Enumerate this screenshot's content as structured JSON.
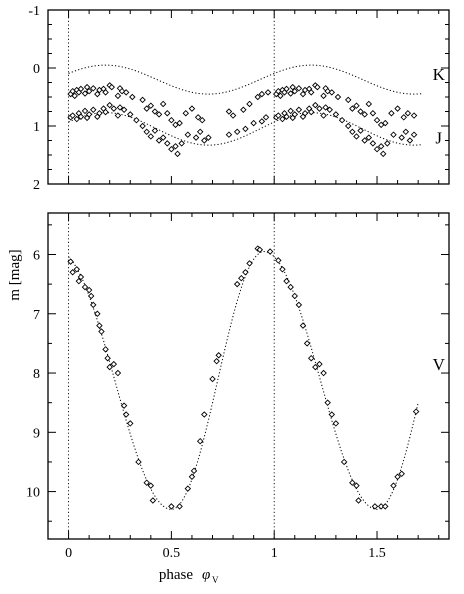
{
  "chart_data": {
    "ylabel": "m  [mag]",
    "xlabel": "phase",
    "xlabel_symbol": "φ",
    "xlabel_subscript": "V",
    "xlim": [
      -0.1,
      1.85
    ],
    "xticks": [
      "0",
      "0.5",
      "1",
      "1.5"
    ],
    "reference_phases": [
      0,
      1
    ],
    "panels": [
      {
        "name": "top",
        "type": "scatter",
        "ylim": [
          -1,
          2
        ],
        "inverted": true,
        "yticks": [
          {
            "value": -1,
            "label": "-1"
          },
          {
            "value": 0,
            "label": "0"
          },
          {
            "value": 1,
            "label": "1"
          },
          {
            "value": 2,
            "label": "2"
          }
        ],
        "series": [
          {
            "name": "K",
            "label_at": [
              1.8,
              0.1
            ],
            "points": [
              [
                0.01,
                0.45
              ],
              [
                0.02,
                0.4
              ],
              [
                0.03,
                0.48
              ],
              [
                0.04,
                0.38
              ],
              [
                0.05,
                0.42
              ],
              [
                0.06,
                0.36
              ],
              [
                0.08,
                0.44
              ],
              [
                0.09,
                0.33
              ],
              [
                0.1,
                0.4
              ],
              [
                0.12,
                0.35
              ],
              [
                0.14,
                0.45
              ],
              [
                0.15,
                0.38
              ],
              [
                0.17,
                0.36
              ],
              [
                0.18,
                0.42
              ],
              [
                0.2,
                0.3
              ],
              [
                0.21,
                0.33
              ],
              [
                0.24,
                0.48
              ],
              [
                0.25,
                0.35
              ],
              [
                0.26,
                0.4
              ],
              [
                0.28,
                0.42
              ],
              [
                0.31,
                0.5
              ],
              [
                0.36,
                0.55
              ],
              [
                0.38,
                0.7
              ],
              [
                0.4,
                0.65
              ],
              [
                0.42,
                0.75
              ],
              [
                0.44,
                0.8
              ],
              [
                0.46,
                0.62
              ],
              [
                0.48,
                0.78
              ],
              [
                0.5,
                0.9
              ],
              [
                0.52,
                0.98
              ],
              [
                0.54,
                0.95
              ],
              [
                0.57,
                0.78
              ],
              [
                0.6,
                0.7
              ],
              [
                0.63,
                0.85
              ],
              [
                0.65,
                0.9
              ],
              [
                0.78,
                0.75
              ],
              [
                0.8,
                0.82
              ],
              [
                0.85,
                0.72
              ],
              [
                0.88,
                0.62
              ],
              [
                0.92,
                0.5
              ],
              [
                0.94,
                0.45
              ],
              [
                0.97,
                0.42
              ],
              [
                1.01,
                0.45
              ],
              [
                1.02,
                0.4
              ],
              [
                1.03,
                0.48
              ],
              [
                1.04,
                0.38
              ],
              [
                1.05,
                0.42
              ],
              [
                1.06,
                0.36
              ],
              [
                1.08,
                0.44
              ],
              [
                1.09,
                0.33
              ],
              [
                1.1,
                0.4
              ],
              [
                1.12,
                0.35
              ],
              [
                1.14,
                0.45
              ],
              [
                1.15,
                0.38
              ],
              [
                1.17,
                0.36
              ],
              [
                1.18,
                0.42
              ],
              [
                1.2,
                0.3
              ],
              [
                1.21,
                0.33
              ],
              [
                1.24,
                0.48
              ],
              [
                1.25,
                0.35
              ],
              [
                1.26,
                0.4
              ],
              [
                1.28,
                0.42
              ],
              [
                1.31,
                0.5
              ],
              [
                1.36,
                0.55
              ],
              [
                1.38,
                0.7
              ],
              [
                1.4,
                0.65
              ],
              [
                1.42,
                0.75
              ],
              [
                1.44,
                0.8
              ],
              [
                1.46,
                0.62
              ],
              [
                1.48,
                0.78
              ],
              [
                1.5,
                0.9
              ],
              [
                1.52,
                0.98
              ],
              [
                1.54,
                0.95
              ],
              [
                1.57,
                0.78
              ],
              [
                1.6,
                0.7
              ],
              [
                1.63,
                0.85
              ],
              [
                1.65,
                0.78
              ],
              [
                1.68,
                0.82
              ]
            ]
          },
          {
            "name": "J",
            "label_at": [
              1.8,
              1.2
            ],
            "points": [
              [
                0.01,
                0.85
              ],
              [
                0.02,
                0.82
              ],
              [
                0.04,
                0.88
              ],
              [
                0.05,
                0.78
              ],
              [
                0.06,
                0.84
              ],
              [
                0.08,
                0.74
              ],
              [
                0.09,
                0.86
              ],
              [
                0.1,
                0.8
              ],
              [
                0.12,
                0.72
              ],
              [
                0.14,
                0.84
              ],
              [
                0.15,
                0.78
              ],
              [
                0.17,
                0.7
              ],
              [
                0.18,
                0.76
              ],
              [
                0.2,
                0.64
              ],
              [
                0.22,
                0.7
              ],
              [
                0.24,
                0.82
              ],
              [
                0.25,
                0.68
              ],
              [
                0.27,
                0.72
              ],
              [
                0.3,
                0.8
              ],
              [
                0.33,
                0.9
              ],
              [
                0.36,
                1.0
              ],
              [
                0.38,
                1.1
              ],
              [
                0.4,
                1.18
              ],
              [
                0.42,
                1.08
              ],
              [
                0.44,
                1.25
              ],
              [
                0.46,
                1.2
              ],
              [
                0.48,
                1.3
              ],
              [
                0.5,
                1.4
              ],
              [
                0.52,
                1.35
              ],
              [
                0.53,
                1.48
              ],
              [
                0.55,
                1.3
              ],
              [
                0.58,
                1.15
              ],
              [
                0.62,
                1.2
              ],
              [
                0.64,
                1.1
              ],
              [
                0.66,
                1.25
              ],
              [
                0.68,
                1.2
              ],
              [
                0.78,
                1.15
              ],
              [
                0.82,
                1.1
              ],
              [
                0.86,
                1.05
              ],
              [
                0.9,
                0.95
              ],
              [
                0.94,
                0.92
              ],
              [
                0.96,
                0.85
              ],
              [
                1.01,
                0.85
              ],
              [
                1.02,
                0.82
              ],
              [
                1.04,
                0.88
              ],
              [
                1.05,
                0.78
              ],
              [
                1.06,
                0.84
              ],
              [
                1.08,
                0.74
              ],
              [
                1.09,
                0.86
              ],
              [
                1.1,
                0.8
              ],
              [
                1.12,
                0.72
              ],
              [
                1.14,
                0.84
              ],
              [
                1.15,
                0.78
              ],
              [
                1.17,
                0.7
              ],
              [
                1.18,
                0.76
              ],
              [
                1.2,
                0.64
              ],
              [
                1.22,
                0.7
              ],
              [
                1.24,
                0.82
              ],
              [
                1.25,
                0.68
              ],
              [
                1.27,
                0.72
              ],
              [
                1.3,
                0.8
              ],
              [
                1.33,
                0.9
              ],
              [
                1.36,
                1.0
              ],
              [
                1.38,
                1.1
              ],
              [
                1.4,
                1.18
              ],
              [
                1.42,
                1.08
              ],
              [
                1.44,
                1.25
              ],
              [
                1.46,
                1.2
              ],
              [
                1.48,
                1.3
              ],
              [
                1.5,
                1.4
              ],
              [
                1.52,
                1.35
              ],
              [
                1.53,
                1.48
              ],
              [
                1.55,
                1.3
              ],
              [
                1.58,
                1.15
              ],
              [
                1.62,
                1.2
              ],
              [
                1.64,
                1.1
              ],
              [
                1.66,
                1.25
              ],
              [
                1.68,
                1.15
              ]
            ]
          }
        ],
        "fits": [
          {
            "name": "K",
            "mean": 0.2,
            "amp": 0.25,
            "peak_phase": 0.18
          },
          {
            "name": "J",
            "mean": 1.05,
            "amp": 0.28,
            "peak_phase": 0.18
          }
        ]
      },
      {
        "name": "bottom",
        "type": "scatter",
        "ylim": [
          5.3,
          10.8
        ],
        "inverted": true,
        "yticks": [
          {
            "value": 6,
            "label": "6"
          },
          {
            "value": 7,
            "label": "7"
          },
          {
            "value": 8,
            "label": "8"
          },
          {
            "value": 9,
            "label": "9"
          },
          {
            "value": 10,
            "label": "10"
          }
        ],
        "series": [
          {
            "name": "V",
            "label_at": [
              1.8,
              7.85
            ],
            "points": [
              [
                0.01,
                6.12
              ],
              [
                0.02,
                6.3
              ],
              [
                0.04,
                6.25
              ],
              [
                0.05,
                6.45
              ],
              [
                0.06,
                6.38
              ],
              [
                0.08,
                6.55
              ],
              [
                0.1,
                6.6
              ],
              [
                0.11,
                6.7
              ],
              [
                0.12,
                6.85
              ],
              [
                0.14,
                7.0
              ],
              [
                0.15,
                7.2
              ],
              [
                0.16,
                7.3
              ],
              [
                0.18,
                7.6
              ],
              [
                0.19,
                7.75
              ],
              [
                0.2,
                7.9
              ],
              [
                0.22,
                7.85
              ],
              [
                0.24,
                8.0
              ],
              [
                0.27,
                8.55
              ],
              [
                0.28,
                8.7
              ],
              [
                0.3,
                8.85
              ],
              [
                0.34,
                9.5
              ],
              [
                0.38,
                9.85
              ],
              [
                0.4,
                9.9
              ],
              [
                0.41,
                10.15
              ],
              [
                0.5,
                10.25
              ],
              [
                0.54,
                10.25
              ],
              [
                0.58,
                9.95
              ],
              [
                0.6,
                9.75
              ],
              [
                0.61,
                9.65
              ],
              [
                0.64,
                9.15
              ],
              [
                0.66,
                8.7
              ],
              [
                0.7,
                8.1
              ],
              [
                0.72,
                7.8
              ],
              [
                0.73,
                7.7
              ],
              [
                0.82,
                6.5
              ],
              [
                0.84,
                6.4
              ],
              [
                0.86,
                6.3
              ],
              [
                0.88,
                6.15
              ],
              [
                0.92,
                5.9
              ],
              [
                0.93,
                5.92
              ],
              [
                0.98,
                5.95
              ],
              [
                1.02,
                6.1
              ],
              [
                1.04,
                6.25
              ],
              [
                1.06,
                6.45
              ],
              [
                1.08,
                6.55
              ],
              [
                1.1,
                6.7
              ],
              [
                1.12,
                6.85
              ],
              [
                1.14,
                7.2
              ],
              [
                1.16,
                7.5
              ],
              [
                1.18,
                7.75
              ],
              [
                1.2,
                7.9
              ],
              [
                1.22,
                7.85
              ],
              [
                1.24,
                8.0
              ],
              [
                1.26,
                8.5
              ],
              [
                1.28,
                8.7
              ],
              [
                1.3,
                8.85
              ],
              [
                1.34,
                9.5
              ],
              [
                1.38,
                9.85
              ],
              [
                1.4,
                9.9
              ],
              [
                1.41,
                10.15
              ],
              [
                1.49,
                10.25
              ],
              [
                1.52,
                10.25
              ],
              [
                1.54,
                10.25
              ],
              [
                1.58,
                9.9
              ],
              [
                1.6,
                9.75
              ],
              [
                1.62,
                9.7
              ],
              [
                1.69,
                8.65
              ]
            ]
          }
        ],
        "fits": [
          {
            "name": "V",
            "minimum_phase": 0.5,
            "maximum_phase": 0.95,
            "min_mag": 10.3,
            "max_mag": 5.95
          }
        ]
      }
    ]
  }
}
